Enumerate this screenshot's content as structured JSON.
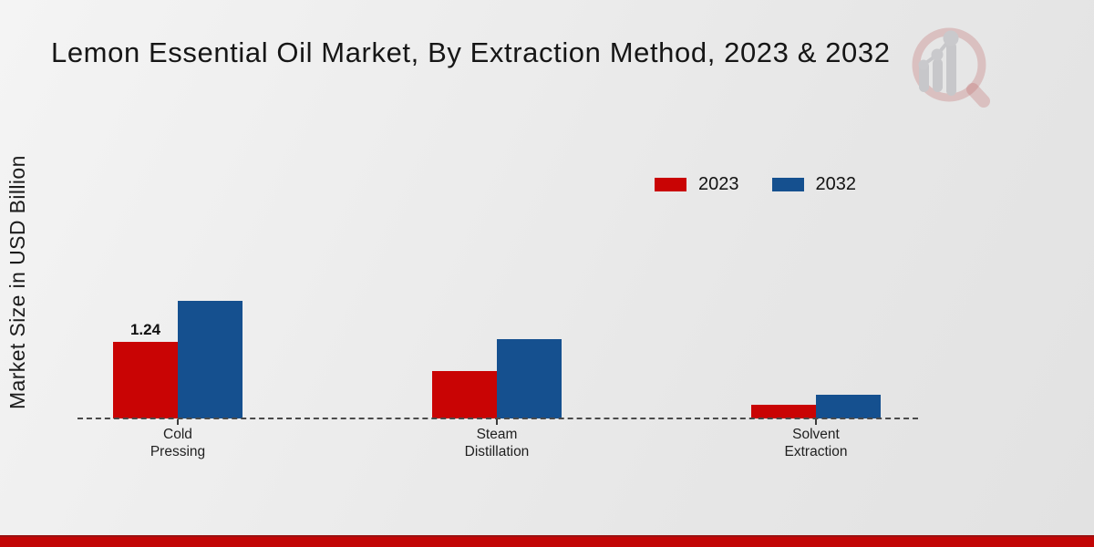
{
  "page": {
    "title": "Lemon Essential Oil Market, By Extraction Method, 2023 & 2032",
    "y_axis_label": "Market Size in USD Billion"
  },
  "legend": {
    "position": "upper right",
    "items": [
      {
        "label": "2023",
        "color": "#c90404"
      },
      {
        "label": "2032",
        "color": "#15508f"
      }
    ]
  },
  "chart_data": {
    "type": "bar",
    "title": "Lemon Essential Oil Market, By Extraction Method, 2023 & 2032",
    "xlabel": "",
    "ylabel": "Market Size in USD Billion",
    "categories": [
      "Cold Pressing",
      "Steam Distillation",
      "Solvent Extraction"
    ],
    "series": [
      {
        "name": "2023",
        "color": "#c90404",
        "values": [
          1.24,
          0.77,
          0.22
        ],
        "data_labels": [
          "1.24",
          "",
          ""
        ]
      },
      {
        "name": "2032",
        "color": "#15508f",
        "values": [
          1.9,
          1.28,
          0.38
        ],
        "data_labels": [
          "",
          "",
          ""
        ]
      }
    ],
    "ylim": [
      0,
      2.2
    ],
    "y_ticks_visible": false,
    "grid": "off",
    "baseline_style": "dashed",
    "legend_position": "upper right"
  },
  "branding": {
    "logo": "magnifier-growth-chart-watermark",
    "footer_color": "#c20505"
  }
}
